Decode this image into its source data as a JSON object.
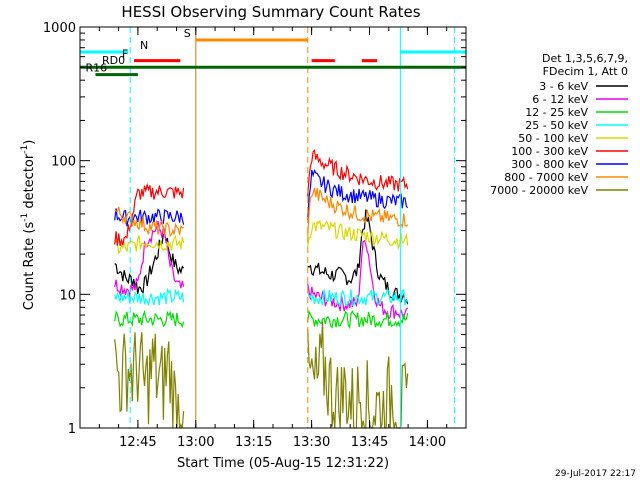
{
  "chart_data": {
    "type": "line",
    "title": "HESSI Observing Summary Count Rates",
    "xlabel": "Start Time (05-Aug-15 12:31:22)",
    "ylabel": "Count Rate (s-1 detector-1)",
    "ylabel_parts": [
      "Count Rate (s",
      "-1",
      " detector",
      "-1",
      ")"
    ],
    "x_unit": "minutes after 12:30",
    "xlim": [
      0,
      100
    ],
    "ylim": [
      1,
      1000
    ],
    "y_scale": "log",
    "x_ticks": [
      {
        "x": 15,
        "label": "12:45"
      },
      {
        "x": 30,
        "label": "13:00"
      },
      {
        "x": 45,
        "label": "13:15"
      },
      {
        "x": 60,
        "label": "13:30"
      },
      {
        "x": 75,
        "label": "13:45"
      },
      {
        "x": 90,
        "label": "14:00"
      }
    ],
    "y_ticks": [
      {
        "y": 1,
        "label": "1"
      },
      {
        "y": 10,
        "label": "10"
      },
      {
        "y": 100,
        "label": "100"
      },
      {
        "y": 1000,
        "label": "1000"
      }
    ],
    "legend_header": [
      "Det 1,3,5,6,7,9,",
      "FDecim 1, Att 0"
    ],
    "legend_position": "right",
    "timestamp": "29-Jul-2017 22:17",
    "data_gaps": [
      [
        0,
        9
      ],
      [
        27,
        59
      ],
      [
        85,
        100
      ]
    ],
    "series": [
      {
        "name": "3 - 6 keV",
        "color": "#000000",
        "x": [
          9,
          12,
          14,
          15,
          17,
          20,
          22,
          23,
          24,
          25,
          26,
          27,
          59,
          60,
          62,
          65,
          68,
          70,
          72,
          73,
          74,
          75,
          76,
          77,
          78,
          80,
          82,
          84,
          85
        ],
        "y": [
          17,
          13,
          13,
          11,
          12,
          20,
          30,
          22,
          18,
          16,
          15,
          15,
          18,
          16,
          15,
          14,
          14,
          13,
          15,
          28,
          38,
          32,
          22,
          16,
          13,
          11,
          10,
          10,
          9
        ]
      },
      {
        "name": "6 - 12 keV",
        "color": "#e800e8",
        "x": [
          9,
          12,
          14,
          15,
          17,
          20,
          22,
          23,
          24,
          25,
          26,
          27,
          59,
          60,
          62,
          65,
          68,
          70,
          72,
          73,
          74,
          75,
          76,
          77,
          78,
          80,
          82,
          84,
          85
        ],
        "y": [
          12,
          11,
          11,
          12,
          25,
          32,
          28,
          18,
          14,
          12,
          11,
          11,
          11,
          10,
          9.5,
          9,
          8.5,
          8.5,
          8.5,
          20,
          27,
          18,
          11,
          9,
          8,
          7.5,
          7.5,
          7,
          7
        ]
      },
      {
        "name": "12 - 25 keV",
        "color": "#00dd00",
        "x": [
          9,
          12,
          15,
          18,
          21,
          24,
          27,
          59,
          60,
          62,
          65,
          68,
          72,
          76,
          80,
          85
        ],
        "y": [
          6.5,
          6.5,
          6.5,
          6.5,
          6.5,
          6.5,
          6.5,
          6.5,
          6.5,
          6.5,
          6.5,
          6.5,
          6.5,
          6.5,
          6.5,
          6.5
        ]
      },
      {
        "name": "25 - 50 keV",
        "color": "#00ffff",
        "x": [
          9,
          12,
          15,
          18,
          21,
          24,
          27,
          59,
          60,
          62,
          65,
          68,
          72,
          76,
          80,
          85
        ],
        "y": [
          9.5,
          9.5,
          9.5,
          9.5,
          9.5,
          9.5,
          9.5,
          9.5,
          9.5,
          9.5,
          9.5,
          9.5,
          9.5,
          9.5,
          9.5,
          9.5
        ]
      },
      {
        "name": "50 - 100 keV",
        "color": "#d8d800",
        "x": [
          9,
          12,
          15,
          18,
          21,
          24,
          27,
          59,
          60,
          62,
          65,
          68,
          72,
          76,
          80,
          85
        ],
        "y": [
          22,
          22,
          24,
          25,
          24,
          24,
          24,
          24,
          33,
          32,
          31,
          29,
          28,
          27,
          26,
          25
        ]
      },
      {
        "name": "100 - 300 keV",
        "color": "#ff0000",
        "x": [
          9,
          12,
          15,
          18,
          21,
          24,
          27,
          59,
          60,
          62,
          65,
          68,
          72,
          76,
          80,
          85
        ],
        "y": [
          26,
          26,
          57,
          58,
          59,
          58,
          57,
          57,
          110,
          100,
          90,
          82,
          75,
          70,
          67,
          66
        ]
      },
      {
        "name": "300 - 800 keV",
        "color": "#0000ff",
        "x": [
          9,
          12,
          15,
          18,
          21,
          24,
          27,
          59,
          60,
          62,
          65,
          68,
          72,
          76,
          80,
          85
        ],
        "y": [
          40,
          37,
          38,
          38,
          38,
          38,
          38,
          38,
          78,
          70,
          62,
          57,
          54,
          52,
          50,
          49
        ]
      },
      {
        "name": "800 - 7000 keV",
        "color": "#ff8800",
        "x": [
          9,
          12,
          15,
          18,
          21,
          24,
          27,
          59,
          60,
          62,
          65,
          68,
          72,
          76,
          80,
          85
        ],
        "y": [
          42,
          38,
          35,
          32,
          31,
          30,
          30,
          30,
          60,
          54,
          48,
          44,
          40,
          38,
          37,
          36
        ]
      },
      {
        "name": "7000 - 20000 keV",
        "color": "#808000",
        "x": [
          9,
          11,
          12,
          14,
          15,
          17,
          19,
          21,
          23,
          25,
          27,
          59,
          61,
          63,
          65,
          67,
          69,
          71,
          73,
          75,
          77,
          79,
          81,
          83,
          85
        ],
        "y": [
          3,
          2.2,
          3,
          2.5,
          3,
          2,
          3,
          2,
          3,
          1.3,
          2,
          2.5,
          2,
          3,
          2,
          1.5,
          2,
          1.3,
          2,
          1.3,
          1.5,
          1.3,
          2,
          1.5,
          1.3
        ]
      }
    ],
    "flag_bars": [
      {
        "label": "N",
        "color": "#00ffff",
        "y": 650,
        "segments": [
          [
            0,
            12.5
          ],
          [
            83,
            100
          ]
        ]
      },
      {
        "label": "F",
        "color": "#ff0000",
        "y": 560,
        "segments": [
          [
            14,
            26
          ],
          [
            60,
            66
          ],
          [
            73,
            77
          ]
        ]
      },
      {
        "label": "S",
        "color": "#ff8800",
        "y": 800,
        "segments": [
          [
            30,
            59
          ]
        ]
      },
      {
        "label": "RD0",
        "color": "#006600",
        "y": 500,
        "segments": [
          [
            0,
            100
          ]
        ]
      },
      {
        "label": "R16",
        "color": "#006600",
        "y": 440,
        "segments": [
          [
            4,
            15
          ]
        ]
      }
    ],
    "vertical_markers": [
      {
        "x": 0,
        "color": "#00ffff",
        "style": "solid"
      },
      {
        "x": 13,
        "color": "#00ffff",
        "style": "dashed"
      },
      {
        "x": 30,
        "color": "#c08000",
        "style": "solid"
      },
      {
        "x": 59,
        "color": "#ff8800",
        "style": "dashed"
      },
      {
        "x": 83,
        "color": "#00ffff",
        "style": "solid"
      },
      {
        "x": 97,
        "color": "#00ffff",
        "style": "dashed"
      }
    ]
  }
}
